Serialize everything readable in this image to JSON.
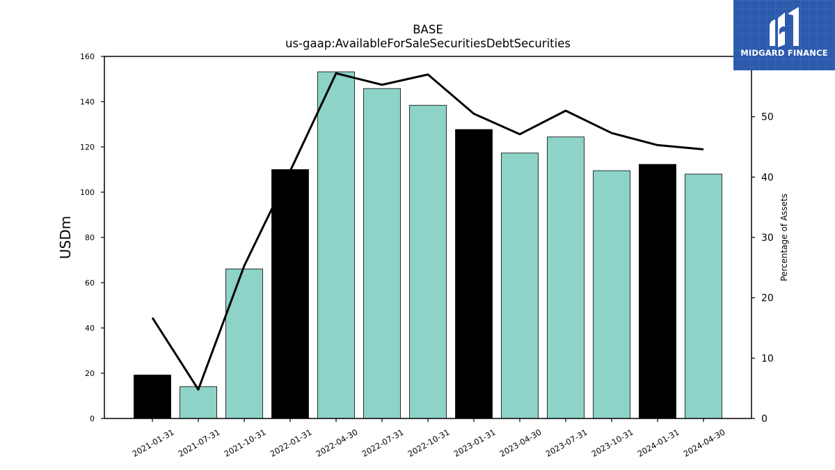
{
  "brand": {
    "name": "MIDGARD FINANCE",
    "bg_color": "#2c5aad"
  },
  "chart_data": {
    "type": "bar",
    "title": "BASE",
    "subtitle": "us-gaap:AvailableForSaleSecuritiesDebtSecurities",
    "ylabel": "USDm",
    "y2label": "Percentage of Assets",
    "ylim": [
      0,
      160
    ],
    "y2lim": [
      0,
      60
    ],
    "yticks": [
      0,
      20,
      40,
      60,
      80,
      100,
      120,
      140,
      160
    ],
    "y2ticks": [
      0,
      10,
      20,
      30,
      40,
      50
    ],
    "categories": [
      "2021-01-31",
      "2021-07-31",
      "2021-10-31",
      "2022-01-31",
      "2022-04-30",
      "2022-07-31",
      "2022-10-31",
      "2023-01-31",
      "2023-04-30",
      "2023-07-31",
      "2023-10-31",
      "2024-01-31",
      "2024-04-30"
    ],
    "series": [
      {
        "type": "bar",
        "axis": "left",
        "values": [
          19.2,
          14.1,
          66.1,
          110.0,
          153.2,
          145.8,
          138.4,
          127.7,
          117.3,
          124.4,
          109.5,
          112.3,
          108.0
        ],
        "colors": [
          "#000000",
          "#8dd3c7",
          "#8dd3c7",
          "#000000",
          "#8dd3c7",
          "#8dd3c7",
          "#8dd3c7",
          "#000000",
          "#8dd3c7",
          "#8dd3c7",
          "#8dd3c7",
          "#000000",
          "#8dd3c7"
        ]
      },
      {
        "type": "line",
        "axis": "right",
        "color": "#000000",
        "values": [
          16.7,
          4.8,
          25.3,
          41.0,
          57.2,
          55.3,
          57.0,
          50.5,
          47.1,
          51.0,
          47.3,
          45.3,
          44.6
        ]
      }
    ],
    "grid": false,
    "legend": "none"
  }
}
